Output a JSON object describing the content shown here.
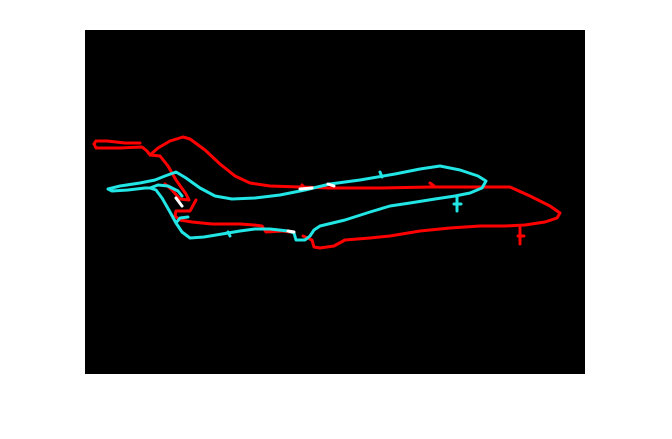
{
  "figure": {
    "background": "#ffffff",
    "plot_background": "#000000",
    "overlap_highlight": "#ffffff"
  },
  "outlines": [
    {
      "name": "reference-aircraft-outline",
      "color": "#ff0000"
    },
    {
      "name": "transformed-aircraft-outline",
      "color": "#22e5e5"
    }
  ]
}
